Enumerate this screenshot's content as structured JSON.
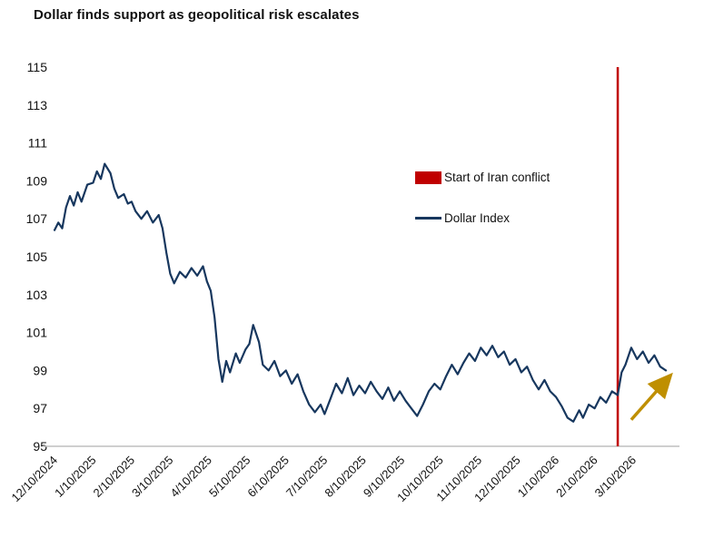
{
  "title": "Dollar finds support as geopolitical risk escalates",
  "colors": {
    "line": "#17375e",
    "event": "#c00000",
    "arrow": "#bf8f00",
    "axis": "#bfbfbf",
    "text": "#111111"
  },
  "legend": [
    {
      "label": "Start of Iran conflict",
      "swatch": "rect",
      "color": "#c00000"
    },
    {
      "label": "Dollar Index",
      "swatch": "line",
      "color": "#17375e"
    }
  ],
  "chart_data": {
    "type": "line",
    "title": "Dollar finds support as geopolitical risk escalates",
    "xlabel": "",
    "ylabel": "",
    "ylim": [
      95,
      115
    ],
    "y_ticks": [
      95,
      97,
      99,
      101,
      103,
      105,
      107,
      109,
      111,
      113,
      115
    ],
    "xlim": [
      0,
      16.2
    ],
    "x_unit": "months since 12/10/2024",
    "x_tick_positions": [
      0,
      1,
      2,
      3,
      4,
      5,
      6,
      7,
      8,
      9,
      10,
      11,
      12,
      13,
      14,
      15
    ],
    "x_tick_labels": [
      "12/10/2024",
      "1/10/2025",
      "2/10/2025",
      "3/10/2025",
      "4/10/2025",
      "5/10/2025",
      "6/10/2025",
      "7/10/2025",
      "8/10/2025",
      "9/10/2025",
      "10/10/2025",
      "11/10/2025",
      "12/10/2025",
      "1/10/2026",
      "2/10/2026",
      "3/10/2026"
    ],
    "grid": false,
    "legend_position": "inside-upper-middle",
    "series": [
      {
        "name": "Dollar Index",
        "x": [
          0.0,
          0.1,
          0.2,
          0.3,
          0.4,
          0.5,
          0.6,
          0.7,
          0.85,
          1.0,
          1.1,
          1.2,
          1.3,
          1.45,
          1.55,
          1.65,
          1.8,
          1.9,
          2.0,
          2.1,
          2.25,
          2.4,
          2.55,
          2.7,
          2.8,
          2.9,
          3.0,
          3.1,
          3.25,
          3.4,
          3.55,
          3.7,
          3.85,
          3.95,
          4.05,
          4.15,
          4.25,
          4.35,
          4.45,
          4.55,
          4.7,
          4.8,
          4.95,
          5.05,
          5.15,
          5.3,
          5.4,
          5.55,
          5.7,
          5.85,
          6.0,
          6.15,
          6.3,
          6.45,
          6.6,
          6.75,
          6.9,
          7.0,
          7.15,
          7.3,
          7.45,
          7.6,
          7.75,
          7.9,
          8.05,
          8.2,
          8.35,
          8.5,
          8.65,
          8.8,
          8.95,
          9.1,
          9.25,
          9.4,
          9.55,
          9.7,
          9.85,
          10.0,
          10.15,
          10.3,
          10.45,
          10.6,
          10.75,
          10.9,
          11.05,
          11.2,
          11.35,
          11.5,
          11.65,
          11.8,
          11.95,
          12.1,
          12.25,
          12.4,
          12.55,
          12.7,
          12.85,
          13.0,
          13.15,
          13.3,
          13.45,
          13.6,
          13.7,
          13.85,
          14.0,
          14.15,
          14.3,
          14.45,
          14.6,
          14.7,
          14.8,
          14.95,
          15.1,
          15.25,
          15.4,
          15.55,
          15.7,
          15.85
        ],
        "values": [
          106.4,
          106.8,
          106.5,
          107.6,
          108.2,
          107.7,
          108.4,
          107.9,
          108.8,
          108.9,
          109.5,
          109.1,
          109.9,
          109.4,
          108.6,
          108.1,
          108.3,
          107.8,
          107.9,
          107.4,
          107.0,
          107.4,
          106.8,
          107.2,
          106.5,
          105.2,
          104.1,
          103.6,
          104.2,
          103.9,
          104.4,
          104.0,
          104.5,
          103.7,
          103.2,
          101.8,
          99.6,
          98.4,
          99.5,
          98.9,
          99.9,
          99.4,
          100.1,
          100.4,
          101.4,
          100.5,
          99.3,
          99.0,
          99.5,
          98.7,
          99.0,
          98.3,
          98.8,
          97.9,
          97.2,
          96.8,
          97.2,
          96.7,
          97.5,
          98.3,
          97.8,
          98.6,
          97.7,
          98.2,
          97.8,
          98.4,
          97.9,
          97.5,
          98.1,
          97.4,
          97.9,
          97.4,
          97.0,
          96.6,
          97.2,
          97.9,
          98.3,
          98.0,
          98.7,
          99.3,
          98.8,
          99.4,
          99.9,
          99.5,
          100.2,
          99.8,
          100.3,
          99.7,
          100.0,
          99.3,
          99.6,
          98.9,
          99.2,
          98.5,
          98.0,
          98.5,
          97.9,
          97.6,
          97.1,
          96.5,
          96.3,
          96.9,
          96.5,
          97.2,
          97.0,
          97.6,
          97.3,
          97.9,
          97.7,
          98.9,
          99.3,
          100.2,
          99.6,
          100.0,
          99.4,
          99.8,
          99.2,
          99.0
        ]
      }
    ],
    "event_line": {
      "x": 14.6,
      "label": "Start of Iran conflict"
    },
    "arrow_annotation": {
      "x1": 14.95,
      "y1": 96.4,
      "x2": 15.95,
      "y2": 98.7
    }
  }
}
